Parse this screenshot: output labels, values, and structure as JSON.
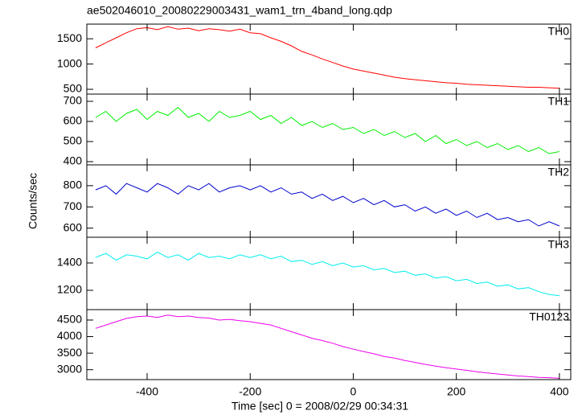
{
  "shared": {
    "title": "ae502046010_20080229003431_wam1_trn_4band_long.qdp",
    "y_label": "Counts/sec",
    "x_label": "Time [sec] 0 = 2008/02/29 00:34:31",
    "x": [
      -500,
      -480,
      -460,
      -440,
      -420,
      -400,
      -380,
      -360,
      -340,
      -320,
      -300,
      -280,
      -260,
      -240,
      -220,
      -200,
      -180,
      -160,
      -140,
      -120,
      -100,
      -80,
      -60,
      -40,
      -20,
      0,
      20,
      40,
      60,
      80,
      100,
      120,
      140,
      160,
      180,
      200,
      220,
      240,
      260,
      280,
      300,
      320,
      340,
      360,
      380,
      400
    ],
    "xlim": [
      -517,
      422
    ],
    "xticks": [
      -400,
      -200,
      0,
      200,
      400
    ]
  },
  "chart_data": [
    {
      "type": "line",
      "label": "TH0",
      "color": "#ff0000",
      "ylim": [
        405,
        1790
      ],
      "yticks": [
        500,
        1000,
        1500
      ],
      "values": [
        1320,
        1420,
        1520,
        1620,
        1700,
        1720,
        1680,
        1740,
        1690,
        1710,
        1660,
        1700,
        1680,
        1650,
        1690,
        1620,
        1600,
        1520,
        1450,
        1360,
        1250,
        1180,
        1100,
        1030,
        960,
        900,
        860,
        820,
        780,
        740,
        710,
        690,
        670,
        650,
        630,
        620,
        600,
        590,
        580,
        570,
        560,
        550,
        540,
        540,
        530,
        520
      ]
    },
    {
      "type": "line",
      "label": "TH1",
      "color": "#00ee00",
      "ylim": [
        384,
        736
      ],
      "yticks": [
        400,
        500,
        600,
        700
      ],
      "values": [
        620,
        650,
        600,
        640,
        660,
        610,
        650,
        630,
        670,
        620,
        640,
        600,
        650,
        620,
        630,
        650,
        610,
        630,
        590,
        620,
        580,
        600,
        570,
        590,
        560,
        570,
        540,
        560,
        530,
        550,
        520,
        540,
        500,
        530,
        490,
        510,
        480,
        500,
        470,
        490,
        460,
        480,
        450,
        470,
        440,
        450
      ]
    },
    {
      "type": "line",
      "label": "TH2",
      "color": "#0000cc",
      "ylim": [
        557,
        898
      ],
      "yticks": [
        600,
        700,
        800
      ],
      "values": [
        780,
        800,
        760,
        810,
        790,
        770,
        810,
        790,
        760,
        800,
        780,
        810,
        770,
        790,
        800,
        780,
        800,
        770,
        790,
        760,
        770,
        740,
        760,
        730,
        750,
        720,
        740,
        710,
        730,
        700,
        710,
        680,
        700,
        670,
        690,
        660,
        680,
        650,
        670,
        640,
        650,
        630,
        640,
        610,
        630,
        610
      ]
    },
    {
      "type": "line",
      "label": "TH3",
      "color": "#00eeee",
      "ylim": [
        1059,
        1588
      ],
      "yticks": [
        1200,
        1400
      ],
      "values": [
        1440,
        1470,
        1420,
        1460,
        1450,
        1430,
        1480,
        1440,
        1460,
        1420,
        1470,
        1440,
        1450,
        1430,
        1460,
        1440,
        1460,
        1430,
        1450,
        1410,
        1420,
        1390,
        1410,
        1380,
        1400,
        1370,
        1380,
        1350,
        1360,
        1330,
        1340,
        1310,
        1320,
        1290,
        1300,
        1270,
        1280,
        1250,
        1260,
        1230,
        1240,
        1210,
        1220,
        1190,
        1170,
        1160
      ]
    },
    {
      "type": "line",
      "label": "TH0123",
      "color": "#ee00ee",
      "ylim": [
        2701,
        4815
      ],
      "yticks": [
        3000,
        3500,
        4000,
        4500
      ],
      "values": [
        4250,
        4350,
        4450,
        4550,
        4600,
        4620,
        4580,
        4650,
        4600,
        4620,
        4580,
        4560,
        4500,
        4520,
        4480,
        4450,
        4400,
        4350,
        4250,
        4150,
        4050,
        3950,
        3880,
        3800,
        3700,
        3620,
        3550,
        3480,
        3400,
        3350,
        3280,
        3220,
        3160,
        3110,
        3060,
        3020,
        2980,
        2940,
        2900,
        2870,
        2840,
        2810,
        2790,
        2770,
        2760,
        2740
      ]
    }
  ]
}
